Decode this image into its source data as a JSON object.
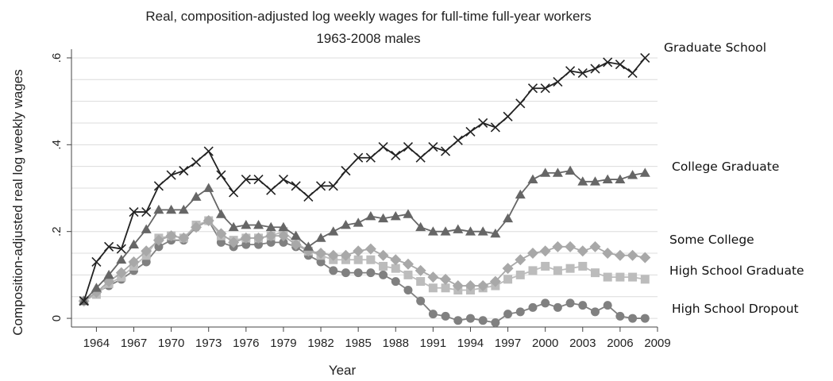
{
  "chart_data": {
    "type": "line",
    "title": "Real, composition-adjusted log weekly wages for full-time full-year workers",
    "subtitle": "1963-2008 males",
    "xlabel": "Year",
    "ylabel": "Composition-adjusted real log weekly wages",
    "xlim": [
      1962,
      2009
    ],
    "ylim": [
      -0.02,
      0.62
    ],
    "xticks": [
      1964,
      1967,
      1970,
      1973,
      1976,
      1979,
      1982,
      1985,
      1988,
      1991,
      1994,
      1997,
      2000,
      2003,
      2006,
      2009
    ],
    "yticks": [
      0,
      0.2,
      0.4,
      0.6
    ],
    "ytick_labels": [
      "0",
      ".2",
      ".4",
      ".6"
    ],
    "grid": true,
    "legend": "labels at right end of lines",
    "x": [
      1963,
      1964,
      1965,
      1966,
      1967,
      1968,
      1969,
      1970,
      1971,
      1972,
      1973,
      1974,
      1975,
      1976,
      1977,
      1978,
      1979,
      1980,
      1981,
      1982,
      1983,
      1984,
      1985,
      1986,
      1987,
      1988,
      1989,
      1990,
      1991,
      1992,
      1993,
      1994,
      1995,
      1996,
      1997,
      1998,
      1999,
      2000,
      2001,
      2002,
      2003,
      2004,
      2005,
      2006,
      2007,
      2008
    ],
    "series": [
      {
        "name": "Graduate School",
        "marker": "x",
        "color": "#222222",
        "values": [
          0.04,
          0.13,
          0.165,
          0.16,
          0.245,
          0.245,
          0.305,
          0.33,
          0.34,
          0.36,
          0.385,
          0.33,
          0.29,
          0.32,
          0.32,
          0.295,
          0.32,
          0.305,
          0.28,
          0.305,
          0.305,
          0.34,
          0.37,
          0.37,
          0.395,
          0.375,
          0.395,
          0.37,
          0.395,
          0.385,
          0.41,
          0.43,
          0.45,
          0.44,
          0.465,
          0.495,
          0.53,
          0.53,
          0.545,
          0.57,
          0.565,
          0.575,
          0.59,
          0.585,
          0.565,
          0.6
        ]
      },
      {
        "name": "College Graduate",
        "marker": "triangle",
        "color": "#666666",
        "values": [
          0.04,
          0.07,
          0.1,
          0.135,
          0.17,
          0.205,
          0.25,
          0.25,
          0.25,
          0.28,
          0.3,
          0.24,
          0.21,
          0.215,
          0.215,
          0.21,
          0.21,
          0.19,
          0.165,
          0.185,
          0.2,
          0.215,
          0.22,
          0.235,
          0.23,
          0.235,
          0.24,
          0.21,
          0.2,
          0.2,
          0.205,
          0.2,
          0.2,
          0.195,
          0.23,
          0.285,
          0.32,
          0.335,
          0.335,
          0.34,
          0.315,
          0.315,
          0.32,
          0.32,
          0.33,
          0.335
        ]
      },
      {
        "name": "Some College",
        "marker": "diamond",
        "color": "#a8a8a8",
        "values": [
          0.04,
          0.06,
          0.085,
          0.105,
          0.13,
          0.155,
          0.18,
          0.19,
          0.185,
          0.21,
          0.225,
          0.195,
          0.175,
          0.185,
          0.185,
          0.19,
          0.19,
          0.17,
          0.155,
          0.15,
          0.145,
          0.145,
          0.155,
          0.16,
          0.145,
          0.135,
          0.125,
          0.11,
          0.095,
          0.09,
          0.075,
          0.075,
          0.075,
          0.085,
          0.115,
          0.135,
          0.15,
          0.155,
          0.165,
          0.165,
          0.155,
          0.165,
          0.15,
          0.145,
          0.145,
          0.14
        ]
      },
      {
        "name": "High School Graduate",
        "marker": "square",
        "color": "#bcbcbc",
        "values": [
          0.04,
          0.055,
          0.08,
          0.095,
          0.12,
          0.145,
          0.185,
          0.19,
          0.185,
          0.215,
          0.225,
          0.19,
          0.18,
          0.185,
          0.185,
          0.19,
          0.2,
          0.175,
          0.155,
          0.145,
          0.135,
          0.135,
          0.135,
          0.135,
          0.12,
          0.115,
          0.1,
          0.085,
          0.07,
          0.07,
          0.065,
          0.065,
          0.07,
          0.075,
          0.09,
          0.1,
          0.11,
          0.12,
          0.11,
          0.115,
          0.12,
          0.105,
          0.095,
          0.095,
          0.095,
          0.09
        ]
      },
      {
        "name": "High School Dropout",
        "marker": "circle",
        "color": "#808080",
        "values": [
          0.04,
          0.06,
          0.075,
          0.09,
          0.11,
          0.13,
          0.165,
          0.18,
          0.18,
          0.21,
          0.225,
          0.175,
          0.165,
          0.17,
          0.17,
          0.175,
          0.175,
          0.165,
          0.145,
          0.13,
          0.11,
          0.105,
          0.105,
          0.105,
          0.1,
          0.085,
          0.065,
          0.04,
          0.01,
          0.005,
          -0.005,
          0.0,
          -0.005,
          -0.01,
          0.01,
          0.015,
          0.025,
          0.035,
          0.025,
          0.035,
          0.03,
          0.015,
          0.03,
          0.005,
          0.0,
          0.0
        ]
      }
    ]
  }
}
